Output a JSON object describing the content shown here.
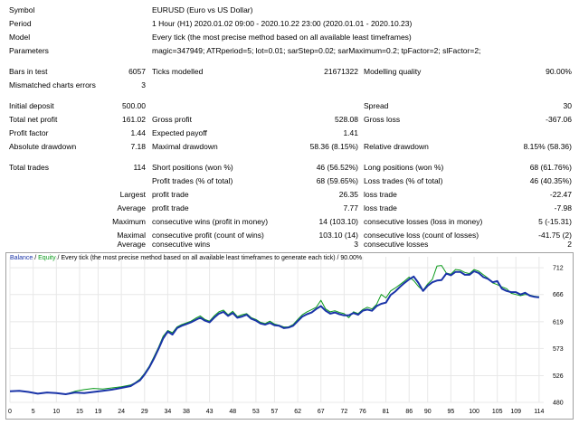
{
  "report": {
    "symbol": {
      "label": "Symbol",
      "value": "EURUSD (Euro vs US Dollar)"
    },
    "period": {
      "label": "Period",
      "value": "1 Hour (H1) 2020.01.02 09:00 - 2020.10.22 23:00 (2020.01.01 - 2020.10.23)"
    },
    "model": {
      "label": "Model",
      "value": "Every tick (the most precise method based on all available least timeframes)"
    },
    "parameters": {
      "label": "Parameters",
      "value": "magic=347949; ATRperiod=5; lot=0.01; sarStep=0.02; sarMaximum=0.2; tpFactor=2; slFactor=2;"
    },
    "bars_in_test": {
      "label": "Bars in test",
      "value": "6057"
    },
    "ticks_modelled": {
      "label": "Ticks modelled",
      "value": "21671322"
    },
    "modelling_quality": {
      "label": "Modelling quality",
      "value": "90.00%"
    },
    "mismatched_errors": {
      "label": "Mismatched charts errors",
      "value": "3"
    },
    "initial_deposit": {
      "label": "Initial deposit",
      "value": "500.00"
    },
    "spread": {
      "label": "Spread",
      "value": "30"
    },
    "total_net_profit": {
      "label": "Total net profit",
      "value": "161.02"
    },
    "gross_profit": {
      "label": "Gross profit",
      "value": "528.08"
    },
    "gross_loss": {
      "label": "Gross loss",
      "value": "-367.06"
    },
    "profit_factor": {
      "label": "Profit factor",
      "value": "1.44"
    },
    "expected_payoff": {
      "label": "Expected payoff",
      "value": "1.41"
    },
    "absolute_drawdown": {
      "label": "Absolute drawdown",
      "value": "7.18"
    },
    "maximal_drawdown": {
      "label": "Maximal drawdown",
      "value": "58.36 (8.15%)"
    },
    "relative_drawdown": {
      "label": "Relative drawdown",
      "value": "8.15% (58.36)"
    },
    "total_trades": {
      "label": "Total trades",
      "value": "114"
    },
    "short_positions": {
      "label": "Short positions (won %)",
      "value": "46 (56.52%)"
    },
    "long_positions": {
      "label": "Long positions (won %)",
      "value": "68 (61.76%)"
    },
    "profit_trades": {
      "label": "Profit trades (% of total)",
      "value": "68 (59.65%)"
    },
    "loss_trades": {
      "label": "Loss trades (% of total)",
      "value": "46 (40.35%)"
    },
    "largest": {
      "label": "Largest",
      "profit_label": "profit trade",
      "profit_value": "26.35",
      "loss_label": "loss trade",
      "loss_value": "-22.47"
    },
    "average": {
      "label": "Average",
      "profit_label": "profit trade",
      "profit_value": "7.77",
      "loss_label": "loss trade",
      "loss_value": "-7.98"
    },
    "maximum": {
      "label": "Maximum",
      "wins_label": "consecutive wins (profit in money)",
      "wins_value": "14 (103.10)",
      "losses_label": "consecutive losses (loss in money)",
      "losses_value": "5 (-15.31)"
    },
    "maximal": {
      "label": "Maximal",
      "wins_label": "consecutive profit (count of wins)",
      "wins_value": "103.10 (14)",
      "losses_label": "consecutive loss (count of losses)",
      "losses_value": "-41.75 (2)"
    },
    "average_consec": {
      "label": "Average",
      "wins_label": "consecutive wins",
      "wins_value": "3",
      "losses_label": "consecutive losses",
      "losses_value": "2"
    }
  },
  "chart_legend": {
    "balance": "Balance",
    "sep": " / ",
    "equity": "Equity",
    "rest": " / Every tick (the most precise method based on all available least timeframes to generate each tick) / 90.00%"
  },
  "colors": {
    "balance": "#1a34a8",
    "equity": "#0a9a1a",
    "grid": "#e8e8e8"
  },
  "chart_data": {
    "type": "line",
    "title": "",
    "xlabel": "",
    "ylabel": "",
    "x_ticks": [
      0,
      5,
      10,
      15,
      19,
      24,
      29,
      34,
      38,
      43,
      48,
      53,
      57,
      62,
      67,
      72,
      76,
      81,
      86,
      90,
      95,
      100,
      105,
      109,
      114
    ],
    "y_ticks": [
      480,
      526,
      573,
      619,
      666,
      712
    ],
    "xlim": [
      0,
      115
    ],
    "ylim": [
      480,
      731
    ],
    "series": [
      {
        "name": "Balance",
        "points": [
          [
            0,
            499
          ],
          [
            2,
            500
          ],
          [
            4,
            498
          ],
          [
            6,
            495
          ],
          [
            8,
            497
          ],
          [
            10,
            496
          ],
          [
            12,
            494
          ],
          [
            14,
            497
          ],
          [
            16,
            496
          ],
          [
            18,
            498
          ],
          [
            20,
            500
          ],
          [
            22,
            502
          ],
          [
            24,
            505
          ],
          [
            26,
            508
          ],
          [
            27,
            513
          ],
          [
            28,
            518
          ],
          [
            29,
            528
          ],
          [
            30,
            540
          ],
          [
            31,
            555
          ],
          [
            32,
            572
          ],
          [
            33,
            590
          ],
          [
            34,
            602
          ],
          [
            35,
            597
          ],
          [
            36,
            608
          ],
          [
            37,
            612
          ],
          [
            38,
            615
          ],
          [
            39,
            618
          ],
          [
            40,
            622
          ],
          [
            41,
            626
          ],
          [
            42,
            621
          ],
          [
            43,
            618
          ],
          [
            44,
            626
          ],
          [
            45,
            633
          ],
          [
            46,
            636
          ],
          [
            47,
            629
          ],
          [
            48,
            634
          ],
          [
            49,
            626
          ],
          [
            50,
            628
          ],
          [
            51,
            631
          ],
          [
            52,
            624
          ],
          [
            53,
            621
          ],
          [
            54,
            616
          ],
          [
            55,
            614
          ],
          [
            56,
            617
          ],
          [
            57,
            613
          ],
          [
            58,
            612
          ],
          [
            59,
            608
          ],
          [
            60,
            609
          ],
          [
            61,
            612
          ],
          [
            62,
            620
          ],
          [
            63,
            628
          ],
          [
            64,
            632
          ],
          [
            65,
            635
          ],
          [
            66,
            641
          ],
          [
            67,
            646
          ],
          [
            68,
            638
          ],
          [
            69,
            633
          ],
          [
            70,
            635
          ],
          [
            71,
            632
          ],
          [
            72,
            630
          ],
          [
            73,
            630
          ],
          [
            74,
            634
          ],
          [
            75,
            631
          ],
          [
            76,
            638
          ],
          [
            77,
            640
          ],
          [
            78,
            638
          ],
          [
            79,
            646
          ],
          [
            80,
            650
          ],
          [
            81,
            652
          ],
          [
            82,
            665
          ],
          [
            83,
            671
          ],
          [
            84,
            679
          ],
          [
            85,
            686
          ],
          [
            86,
            692
          ],
          [
            87,
            697
          ],
          [
            88,
            686
          ],
          [
            89,
            672
          ],
          [
            90,
            681
          ],
          [
            91,
            687
          ],
          [
            92,
            690
          ],
          [
            93,
            691
          ],
          [
            94,
            702
          ],
          [
            95,
            699
          ],
          [
            96,
            705
          ],
          [
            97,
            705
          ],
          [
            98,
            700
          ],
          [
            99,
            700
          ],
          [
            100,
            706
          ],
          [
            101,
            703
          ],
          [
            102,
            696
          ],
          [
            103,
            693
          ],
          [
            104,
            687
          ],
          [
            105,
            689
          ],
          [
            106,
            676
          ],
          [
            107,
            672
          ],
          [
            108,
            670
          ],
          [
            109,
            670
          ],
          [
            110,
            666
          ],
          [
            111,
            669
          ],
          [
            112,
            664
          ],
          [
            113,
            662
          ],
          [
            114,
            661
          ]
        ]
      },
      {
        "name": "Equity",
        "points": [
          [
            0,
            499
          ],
          [
            2,
            500
          ],
          [
            4,
            498
          ],
          [
            6,
            495
          ],
          [
            8,
            497
          ],
          [
            10,
            496
          ],
          [
            12,
            494
          ],
          [
            14,
            499
          ],
          [
            16,
            502
          ],
          [
            18,
            504
          ],
          [
            20,
            503
          ],
          [
            22,
            505
          ],
          [
            24,
            507
          ],
          [
            26,
            510
          ],
          [
            27,
            514
          ],
          [
            28,
            520
          ],
          [
            29,
            530
          ],
          [
            30,
            542
          ],
          [
            31,
            558
          ],
          [
            32,
            575
          ],
          [
            33,
            594
          ],
          [
            34,
            604
          ],
          [
            35,
            600
          ],
          [
            36,
            610
          ],
          [
            37,
            614
          ],
          [
            38,
            617
          ],
          [
            39,
            620
          ],
          [
            40,
            625
          ],
          [
            41,
            629
          ],
          [
            42,
            623
          ],
          [
            43,
            620
          ],
          [
            44,
            629
          ],
          [
            45,
            636
          ],
          [
            46,
            639
          ],
          [
            47,
            631
          ],
          [
            48,
            637
          ],
          [
            49,
            628
          ],
          [
            50,
            631
          ],
          [
            51,
            633
          ],
          [
            52,
            626
          ],
          [
            53,
            623
          ],
          [
            54,
            618
          ],
          [
            55,
            616
          ],
          [
            56,
            620
          ],
          [
            57,
            615
          ],
          [
            58,
            613
          ],
          [
            59,
            610
          ],
          [
            60,
            610
          ],
          [
            61,
            614
          ],
          [
            62,
            623
          ],
          [
            63,
            631
          ],
          [
            64,
            636
          ],
          [
            65,
            640
          ],
          [
            66,
            644
          ],
          [
            67,
            656
          ],
          [
            68,
            641
          ],
          [
            69,
            636
          ],
          [
            70,
            638
          ],
          [
            71,
            635
          ],
          [
            72,
            633
          ],
          [
            73,
            626
          ],
          [
            74,
            636
          ],
          [
            75,
            633
          ],
          [
            76,
            640
          ],
          [
            77,
            644
          ],
          [
            78,
            641
          ],
          [
            79,
            649
          ],
          [
            80,
            666
          ],
          [
            81,
            660
          ],
          [
            82,
            672
          ],
          [
            83,
            677
          ],
          [
            84,
            683
          ],
          [
            85,
            689
          ],
          [
            86,
            696
          ],
          [
            87,
            690
          ],
          [
            88,
            680
          ],
          [
            89,
            673
          ],
          [
            90,
            684
          ],
          [
            91,
            692
          ],
          [
            92,
            715
          ],
          [
            93,
            716
          ],
          [
            94,
            703
          ],
          [
            95,
            701
          ],
          [
            96,
            709
          ],
          [
            97,
            708
          ],
          [
            98,
            704
          ],
          [
            99,
            702
          ],
          [
            100,
            709
          ],
          [
            101,
            706
          ],
          [
            102,
            700
          ],
          [
            103,
            694
          ],
          [
            104,
            686
          ],
          [
            105,
            683
          ],
          [
            106,
            679
          ],
          [
            107,
            676
          ],
          [
            108,
            668
          ],
          [
            109,
            666
          ],
          [
            110,
            664
          ],
          [
            111,
            666
          ],
          [
            112,
            665
          ],
          [
            113,
            663
          ],
          [
            114,
            662
          ]
        ]
      }
    ]
  }
}
